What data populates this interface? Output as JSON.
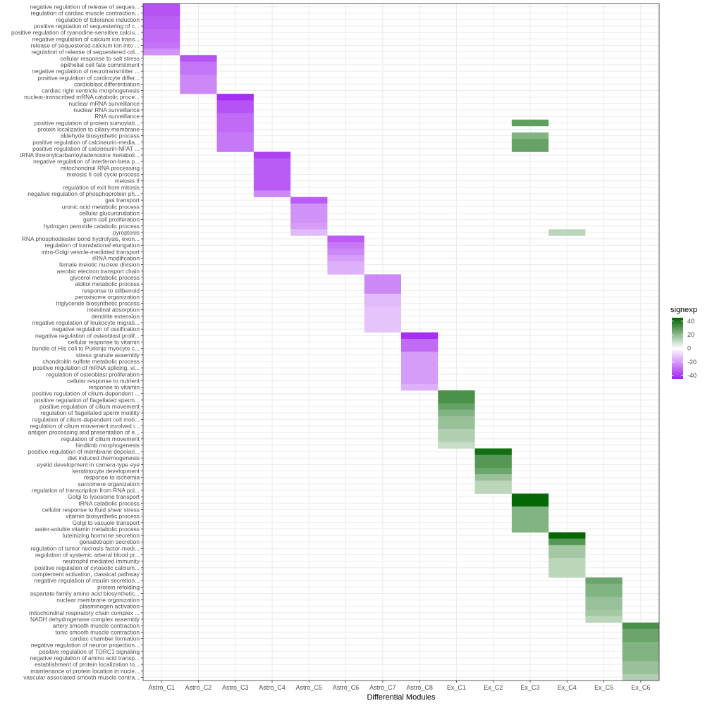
{
  "chart_data": {
    "type": "heatmap",
    "title": "",
    "xlabel": "Differential Modules",
    "ylabel": "",
    "x_categories": [
      "Astro_C1",
      "Astro_C2",
      "Astro_C3",
      "Astro_C4",
      "Astro_C5",
      "Astro_C6",
      "Astro_C7",
      "Astro_C8",
      "Ex_C1",
      "Ex_C2",
      "Ex_C3",
      "Ex_C4",
      "Ex_C5",
      "Ex_C6"
    ],
    "y_categories": [
      "negative regulation of release of seques...",
      "regulation of cardiac muscle contraction...",
      "regulation of tolerance induction",
      "positive regulation of sequestering of c...",
      "positive regulation of ryanodine-sensitive calciu...",
      "negative regulation of calcium ion trans...",
      "release of sequestered calcium ion into ...",
      "regulation of release of sequestered cal...",
      "cellular response to salt stress",
      "epithelial cell fate commitment",
      "negative regulation of neurotransmitter ...",
      "positive regulation of cardiocyte differ...",
      "cardioblast differentiation",
      "cardiac right ventricle morphogenesis",
      "nuclear-transcribed mRNA catabolic proce...",
      "nuclear mRNA surveillance",
      "nuclear RNA surveillance",
      "RNA surveillance",
      "positive regulation of protein sumoylati...",
      "protein localization to ciliary membrane",
      "aldehyde biosynthetic process",
      "positive regulation of calcineurin-media...",
      "positive regulation of calcineurin-NFAT ...",
      "tRNA threonylcarbamoyladenosine metaboli...",
      "negative regulation of interferon-beta p...",
      "mitochondrial RNA processing",
      "meiosis II cell cycle process",
      "meiosis II",
      "regulation of exit from mitosis",
      "negative regulation of phosphoprotein ph...",
      "gas transport",
      "uronic acid metabolic process",
      "cellular glucuronidation",
      "germ cell proliferation",
      "hydrogen peroxide catabolic process",
      "pyroptosis",
      "RNA phosphodiester bond hydrolysis, exon...",
      "regulation of translational elongation",
      "intra-Golgi vesicle-mediated transport",
      "rRNA modification",
      "female meiotic nuclear division",
      "aerobic electron transport chain",
      "glycerol metabolic process",
      "alditol metabolic process",
      "response to stilbenoid",
      "peroxisome organization",
      "triglyceride biosynthetic process",
      "intestinal absorption",
      "dendrite extension",
      "negative regulation of leukocyte migrati...",
      "negative regulation of ossification",
      "negative regulation of osteoblast prolif...",
      "cellular response to vitamin",
      "bundle of His cell to Purkinje myocyte c...",
      "stress granule assembly",
      "chondroitin sulfate metabolic process",
      "positive regulation of mRNA splicing, vi...",
      "regulation of osteoblast proliferation",
      "cellular response to nutrient",
      "response to vitamin",
      "positive regulation of cilium-dependent ...",
      "positive regulation of flagellated sperm...",
      "positive regulation of cilium movement",
      "regulation of flagellated sperm motility",
      "regulation of cilium-dependent cell moti...",
      "regulation of cilium movement involved i...",
      "antigen processing and presentation of e...",
      "regulation of cilium movement",
      "hindlimb morphogenesis",
      "positive regulation of membrane depolari...",
      "diet induced thermogenesis",
      "eyelid development in camera-type eye",
      "keratinocyte development",
      "response to ischemia",
      "sarcomere organization",
      "regulation of transcription from RNA pol...",
      "Golgi to lysosome transport",
      "tRNA catabolic process",
      "cellular response to fluid shear stress",
      "vitamin biosynthetic process",
      "Golgi to vacuole transport",
      "water-soluble vitamin metabolic process",
      "luteinizing hormone secretion",
      "gonadotropin secretion",
      "regulation of tumor necrosis factor-medi...",
      "regulation of systemic arterial blood pr...",
      "neutrophil mediated immunity",
      "positive regulation of cytosolic calcium...",
      "complement activation, classical pathway",
      "negative regulation of insulin secretion...",
      "protein refolding",
      "aspartate family amino acid biosynthetic...",
      "nuclear membrane organization",
      "plasminogen activation",
      "mitochondrial respiratory chain complex ...",
      "NADH dehydrogenase complex assembly",
      "artery smooth muscle contraction",
      "tonic smooth muscle contraction",
      "cardiac chamber formation",
      "negative regulation of neuron projection...",
      "positive regulation of TORC1 signaling",
      "negative regulation of amino acid transp...",
      "establishment of protein localization to...",
      "maintenance of protein location in nucle...",
      "vascular associated smooth muscle contra..."
    ],
    "cells": [
      {
        "x": "Astro_C1",
        "y": "negative regulation of release of seques...",
        "value": -35
      },
      {
        "x": "Astro_C1",
        "y": "regulation of cardiac muscle contraction...",
        "value": -35
      },
      {
        "x": "Astro_C1",
        "y": "regulation of tolerance induction",
        "value": -32
      },
      {
        "x": "Astro_C1",
        "y": "positive regulation of sequestering of c...",
        "value": -32
      },
      {
        "x": "Astro_C1",
        "y": "positive regulation of ryanodine-sensitive calciu...",
        "value": -30
      },
      {
        "x": "Astro_C1",
        "y": "negative regulation of calcium ion trans...",
        "value": -30
      },
      {
        "x": "Astro_C1",
        "y": "release of sequestered calcium ion into ...",
        "value": -28
      },
      {
        "x": "Astro_C1",
        "y": "regulation of release of sequestered cal...",
        "value": -22
      },
      {
        "x": "Astro_C2",
        "y": "cellular response to salt stress",
        "value": -35
      },
      {
        "x": "Astro_C2",
        "y": "epithelial cell fate commitment",
        "value": -28
      },
      {
        "x": "Astro_C2",
        "y": "negative regulation of neurotransmitter ...",
        "value": -28
      },
      {
        "x": "Astro_C2",
        "y": "positive regulation of cardiocyte differ...",
        "value": -24
      },
      {
        "x": "Astro_C2",
        "y": "cardioblast differentiation",
        "value": -24
      },
      {
        "x": "Astro_C2",
        "y": "cardiac right ventricle morphogenesis",
        "value": -24
      },
      {
        "x": "Astro_C3",
        "y": "nuclear-transcribed mRNA catabolic proce...",
        "value": -42
      },
      {
        "x": "Astro_C3",
        "y": "nuclear mRNA surveillance",
        "value": -35
      },
      {
        "x": "Astro_C3",
        "y": "nuclear RNA surveillance",
        "value": -35
      },
      {
        "x": "Astro_C3",
        "y": "RNA surveillance",
        "value": -30
      },
      {
        "x": "Astro_C3",
        "y": "positive regulation of protein sumoylati...",
        "value": -30
      },
      {
        "x": "Astro_C3",
        "y": "protein localization to ciliary membrane",
        "value": -30
      },
      {
        "x": "Astro_C3",
        "y": "aldehyde biosynthetic process",
        "value": -27
      },
      {
        "x": "Astro_C3",
        "y": "positive regulation of calcineurin-media...",
        "value": -27
      },
      {
        "x": "Astro_C3",
        "y": "positive regulation of calcineurin-NFAT ...",
        "value": -27
      },
      {
        "x": "Ex_C3",
        "y": "positive regulation of protein sumoylati...",
        "value": 28
      },
      {
        "x": "Ex_C3",
        "y": "aldehyde biosynthetic process",
        "value": 22
      },
      {
        "x": "Ex_C3",
        "y": "positive regulation of calcineurin-media...",
        "value": 27
      },
      {
        "x": "Ex_C3",
        "y": "positive regulation of calcineurin-NFAT ...",
        "value": 27
      },
      {
        "x": "Astro_C4",
        "y": "tRNA threonylcarbamoyladenosine metaboli...",
        "value": -38
      },
      {
        "x": "Astro_C4",
        "y": "negative regulation of interferon-beta p...",
        "value": -33
      },
      {
        "x": "Astro_C4",
        "y": "mitochondrial RNA processing",
        "value": -33
      },
      {
        "x": "Astro_C4",
        "y": "meiosis II cell cycle process",
        "value": -33
      },
      {
        "x": "Astro_C4",
        "y": "meiosis II",
        "value": -33
      },
      {
        "x": "Astro_C4",
        "y": "regulation of exit from mitosis",
        "value": -33
      },
      {
        "x": "Astro_C4",
        "y": "negative regulation of phosphoprotein ph...",
        "value": -24
      },
      {
        "x": "Astro_C5",
        "y": "gas transport",
        "value": -33
      },
      {
        "x": "Astro_C5",
        "y": "uronic acid metabolic process",
        "value": -22
      },
      {
        "x": "Astro_C5",
        "y": "cellular glucuronidation",
        "value": -22
      },
      {
        "x": "Astro_C5",
        "y": "germ cell proliferation",
        "value": -22
      },
      {
        "x": "Astro_C5",
        "y": "hydrogen peroxide catabolic process",
        "value": -20
      },
      {
        "x": "Astro_C5",
        "y": "pyroptosis",
        "value": -14
      },
      {
        "x": "Ex_C4",
        "y": "pyroptosis",
        "value": 12
      },
      {
        "x": "Astro_C6",
        "y": "RNA phosphodiester bond hydrolysis, exon...",
        "value": -33
      },
      {
        "x": "Astro_C6",
        "y": "regulation of translational elongation",
        "value": -27
      },
      {
        "x": "Astro_C6",
        "y": "intra-Golgi vesicle-mediated transport",
        "value": -24
      },
      {
        "x": "Astro_C6",
        "y": "rRNA modification",
        "value": -20
      },
      {
        "x": "Astro_C6",
        "y": "female meiotic nuclear division",
        "value": -16
      },
      {
        "x": "Astro_C6",
        "y": "aerobic electron transport chain",
        "value": -16
      },
      {
        "x": "Astro_C7",
        "y": "glycerol metabolic process",
        "value": -24
      },
      {
        "x": "Astro_C7",
        "y": "alditol metabolic process",
        "value": -24
      },
      {
        "x": "Astro_C7",
        "y": "response to stilbenoid",
        "value": -24
      },
      {
        "x": "Astro_C7",
        "y": "peroxisome organization",
        "value": -14
      },
      {
        "x": "Astro_C7",
        "y": "triglyceride biosynthetic process",
        "value": -14
      },
      {
        "x": "Astro_C7",
        "y": "intestinal absorption",
        "value": -12
      },
      {
        "x": "Astro_C7",
        "y": "dendrite extension",
        "value": -12
      },
      {
        "x": "Astro_C7",
        "y": "negative regulation of leukocyte migrati...",
        "value": -12
      },
      {
        "x": "Astro_C7",
        "y": "negative regulation of ossification",
        "value": -12
      },
      {
        "x": "Astro_C8",
        "y": "negative regulation of osteoblast prolif...",
        "value": -42
      },
      {
        "x": "Astro_C8",
        "y": "cellular response to vitamin",
        "value": -30
      },
      {
        "x": "Astro_C8",
        "y": "bundle of His cell to Purkinje myocyte c...",
        "value": -30
      },
      {
        "x": "Astro_C8",
        "y": "stress granule assembly",
        "value": -20
      },
      {
        "x": "Astro_C8",
        "y": "chondroitin sulfate metabolic process",
        "value": -20
      },
      {
        "x": "Astro_C8",
        "y": "positive regulation of mRNA splicing, vi...",
        "value": -20
      },
      {
        "x": "Astro_C8",
        "y": "regulation of osteoblast proliferation",
        "value": -20
      },
      {
        "x": "Astro_C8",
        "y": "cellular response to nutrient",
        "value": -20
      },
      {
        "x": "Astro_C8",
        "y": "response to vitamin",
        "value": -16
      },
      {
        "x": "Ex_C1",
        "y": "positive regulation of cilium-dependent ...",
        "value": 32
      },
      {
        "x": "Ex_C1",
        "y": "positive regulation of flagellated sperm...",
        "value": 32
      },
      {
        "x": "Ex_C1",
        "y": "positive regulation of cilium movement",
        "value": 27
      },
      {
        "x": "Ex_C1",
        "y": "regulation of flagellated sperm motility",
        "value": 22
      },
      {
        "x": "Ex_C1",
        "y": "regulation of cilium-dependent cell moti...",
        "value": 18
      },
      {
        "x": "Ex_C1",
        "y": "regulation of cilium movement involved i...",
        "value": 18
      },
      {
        "x": "Ex_C1",
        "y": "antigen processing and presentation of e...",
        "value": 14
      },
      {
        "x": "Ex_C1",
        "y": "regulation of cilium movement",
        "value": 14
      },
      {
        "x": "Ex_C1",
        "y": "hindlimb morphogenesis",
        "value": 10
      },
      {
        "x": "Ex_C2",
        "y": "positive regulation of membrane depolari...",
        "value": 42
      },
      {
        "x": "Ex_C2",
        "y": "diet induced thermogenesis",
        "value": 30
      },
      {
        "x": "Ex_C2",
        "y": "eyelid development in camera-type eye",
        "value": 30
      },
      {
        "x": "Ex_C2",
        "y": "keratinocyte development",
        "value": 26
      },
      {
        "x": "Ex_C2",
        "y": "response to ischemia",
        "value": 18
      },
      {
        "x": "Ex_C2",
        "y": "sarcomere organization",
        "value": 12
      },
      {
        "x": "Ex_C2",
        "y": "regulation of transcription from RNA pol...",
        "value": 12
      },
      {
        "x": "Ex_C3",
        "y": "Golgi to lysosome transport",
        "value": 44
      },
      {
        "x": "Ex_C3",
        "y": "tRNA catabolic process",
        "value": 44
      },
      {
        "x": "Ex_C3",
        "y": "cellular response to fluid shear stress",
        "value": 22
      },
      {
        "x": "Ex_C3",
        "y": "vitamin biosynthetic process",
        "value": 22
      },
      {
        "x": "Ex_C3",
        "y": "Golgi to vacuole transport",
        "value": 22
      },
      {
        "x": "Ex_C3",
        "y": "water-soluble vitamin metabolic process",
        "value": 22
      },
      {
        "x": "Ex_C4",
        "y": "luteinizing hormone secretion",
        "value": 44
      },
      {
        "x": "Ex_C4",
        "y": "gonadotropin secretion",
        "value": 30
      },
      {
        "x": "Ex_C4",
        "y": "regulation of tumor necrosis factor-medi...",
        "value": 16
      },
      {
        "x": "Ex_C4",
        "y": "regulation of systemic arterial blood pr...",
        "value": 16
      },
      {
        "x": "Ex_C4",
        "y": "neutrophil mediated immunity",
        "value": 12
      },
      {
        "x": "Ex_C4",
        "y": "positive regulation of cytosolic calcium...",
        "value": 12
      },
      {
        "x": "Ex_C4",
        "y": "complement activation, classical pathway",
        "value": 12
      },
      {
        "x": "Ex_C5",
        "y": "negative regulation of insulin secretion...",
        "value": 26
      },
      {
        "x": "Ex_C5",
        "y": "protein refolding",
        "value": 22
      },
      {
        "x": "Ex_C5",
        "y": "aspartate family amino acid biosynthetic...",
        "value": 22
      },
      {
        "x": "Ex_C5",
        "y": "nuclear membrane organization",
        "value": 18
      },
      {
        "x": "Ex_C5",
        "y": "plasminogen activation",
        "value": 18
      },
      {
        "x": "Ex_C5",
        "y": "mitochondrial respiratory chain complex ...",
        "value": 16
      },
      {
        "x": "Ex_C5",
        "y": "NADH dehydrogenase complex assembly",
        "value": 12
      },
      {
        "x": "Ex_C6",
        "y": "artery smooth muscle contraction",
        "value": 32
      },
      {
        "x": "Ex_C6",
        "y": "tonic smooth muscle contraction",
        "value": 26
      },
      {
        "x": "Ex_C6",
        "y": "cardiac chamber formation",
        "value": 26
      },
      {
        "x": "Ex_C6",
        "y": "negative regulation of neuron projection...",
        "value": 22
      },
      {
        "x": "Ex_C6",
        "y": "positive regulation of TORC1 signaling",
        "value": 22
      },
      {
        "x": "Ex_C6",
        "y": "negative regulation of amino acid transp...",
        "value": 22
      },
      {
        "x": "Ex_C6",
        "y": "establishment of protein localization to...",
        "value": 18
      },
      {
        "x": "Ex_C6",
        "y": "maintenance of protein location in nucle...",
        "value": 18
      },
      {
        "x": "Ex_C6",
        "y": "vascular associated smooth muscle contra...",
        "value": 14
      }
    ],
    "legend": {
      "title": "signexp",
      "ticks": [
        40,
        20,
        0,
        -20,
        -40
      ],
      "range": [
        -45,
        45
      ],
      "position": "right"
    },
    "colors": {
      "negative": "#a020f0",
      "zero": "#ffffff",
      "positive": "#006400",
      "grid": "#ebebeb",
      "panel_border": "#333333",
      "text": "#4d4d4d"
    },
    "grid": true
  }
}
